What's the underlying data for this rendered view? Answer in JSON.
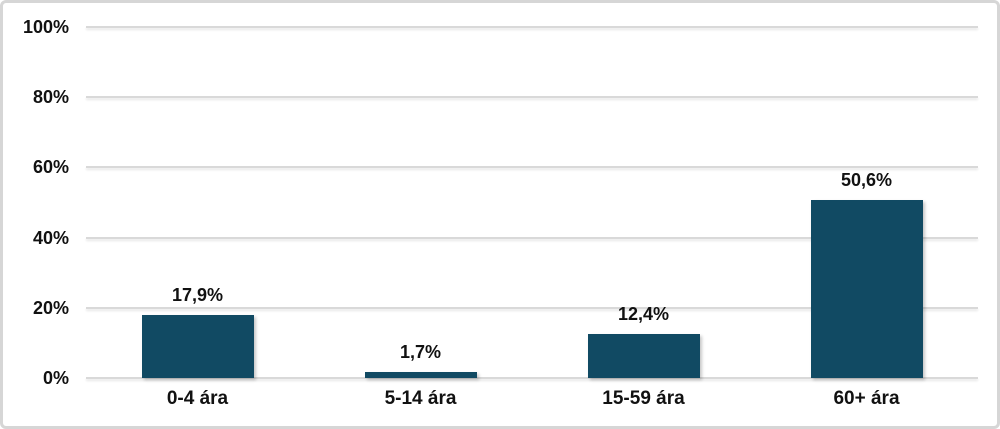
{
  "chart_data": {
    "type": "bar",
    "title": "",
    "xlabel": "",
    "ylabel": "",
    "categories": [
      "0-4 ára",
      "5-14 ára",
      "15-59 ára",
      "60+ ára"
    ],
    "values": [
      17.9,
      1.7,
      12.4,
      50.6
    ],
    "value_labels": [
      "17,9%",
      "1,7%",
      "12,4%",
      "50,6%"
    ],
    "ylim": [
      0,
      100
    ],
    "y_tick_step": 20,
    "y_ticks": [
      {
        "label": "100%",
        "value": 100
      },
      {
        "label": "80%",
        "value": 80
      },
      {
        "label": "60%",
        "value": 60
      },
      {
        "label": "40%",
        "value": 40
      },
      {
        "label": "20%",
        "value": 20
      },
      {
        "label": "0%",
        "value": 0
      }
    ],
    "grid": "horizontal",
    "legend": "none"
  },
  "colors": {
    "bar": "#114a63",
    "gridline": "#d9d9d9",
    "frame_border": "#d6d6d6",
    "text": "#111111",
    "background": "#ffffff"
  }
}
